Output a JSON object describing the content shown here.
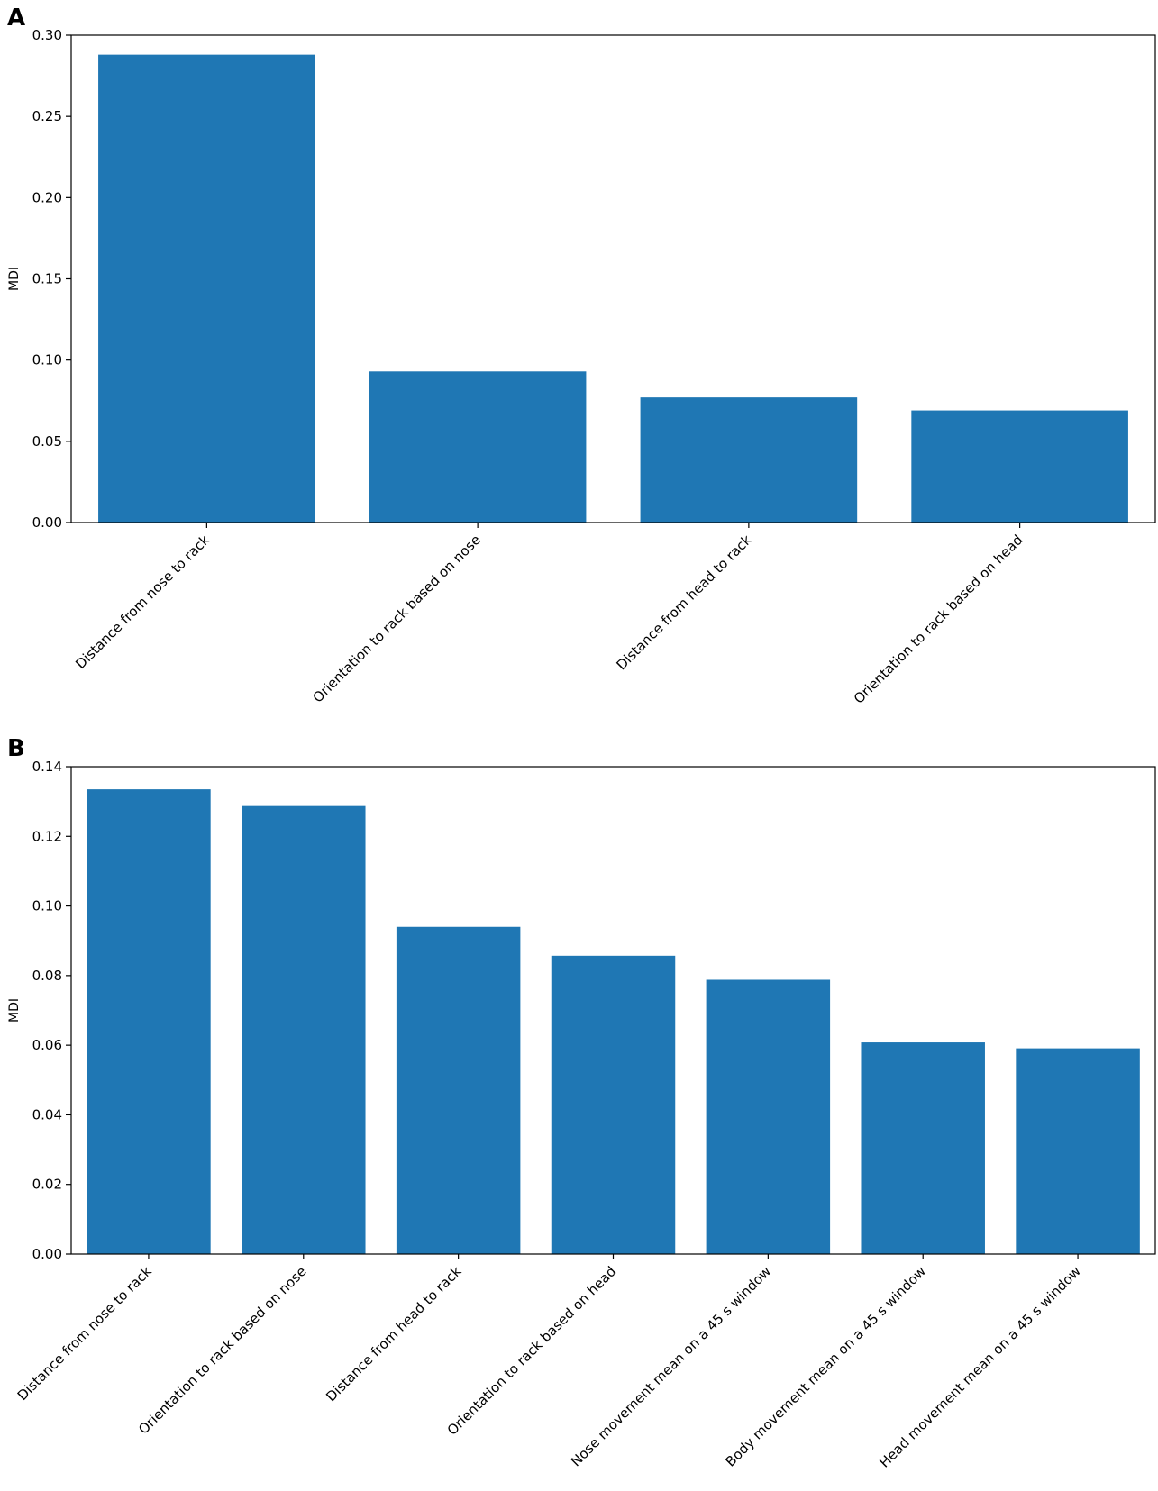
{
  "chart_data": [
    {
      "panel": "A",
      "type": "bar",
      "categories": [
        "Distance from nose to rack",
        "Orientation to rack based on nose",
        "Distance from head to rack",
        "Orientation to rack based on head"
      ],
      "values": [
        0.288,
        0.093,
        0.077,
        0.069
      ],
      "xlabel": "",
      "ylabel": "MDI",
      "ylim": [
        0,
        0.3
      ],
      "yticks": [
        0.0,
        0.05,
        0.1,
        0.15,
        0.2,
        0.25,
        0.3
      ],
      "ytick_labels": [
        "0.00",
        "0.05",
        "0.10",
        "0.15",
        "0.20",
        "0.25",
        "0.30"
      ],
      "bar_color": "#1f77b4",
      "grid": false,
      "legend": false
    },
    {
      "panel": "B",
      "type": "bar",
      "categories": [
        "Distance from nose to rack",
        "Orientation to rack based on nose",
        "Distance from head to rack",
        "Orientation to rack based on head",
        "Nose movement mean on a 45 s window",
        "Body movement mean on a 45 s window",
        "Head movement mean on a 45 s window"
      ],
      "values": [
        0.1335,
        0.1287,
        0.094,
        0.0857,
        0.0788,
        0.0608,
        0.0591
      ],
      "xlabel": "",
      "ylabel": "MDI",
      "ylim": [
        0,
        0.14
      ],
      "yticks": [
        0.0,
        0.02,
        0.04,
        0.06,
        0.08,
        0.1,
        0.12,
        0.14
      ],
      "ytick_labels": [
        "0.00",
        "0.02",
        "0.04",
        "0.06",
        "0.08",
        "0.10",
        "0.12",
        "0.14"
      ],
      "bar_color": "#1f77b4",
      "grid": false,
      "legend": false
    }
  ]
}
